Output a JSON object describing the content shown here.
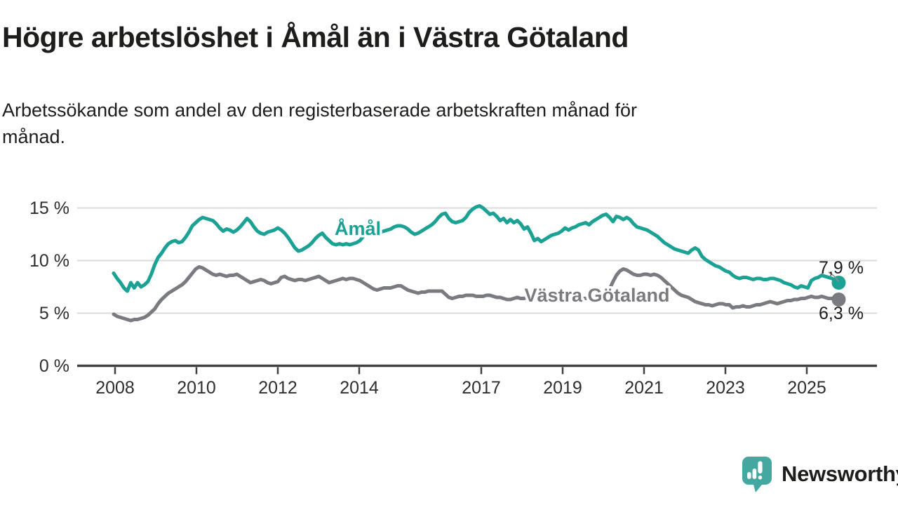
{
  "header": {
    "title": "Högre arbetslöshet i Åmål än i Västra Götaland",
    "subtitle_lines": [
      "Arbetssökande som andel av den registerbaserade arbetskraften månad för",
      "månad."
    ]
  },
  "branding": {
    "logo_text": "Newsworthy",
    "logo_icon": "newsworthy-speech-bubble-bar-chart-icon",
    "logo_color": "#3FA69E"
  },
  "colors": {
    "amal_line": "#1BA294",
    "vastra_gotaland_line": "#7A7B80",
    "gridline": "#DADADA",
    "axis": "#404040",
    "text": "#1D1D1B",
    "tick_text": "#2E2E2E"
  },
  "chart_data": {
    "type": "line",
    "title": "Högre arbetslöshet i Åmål än i Västra Götaland",
    "subtitle": "Arbetssökande som andel av den registerbaserade arbetskraften månad för månad.",
    "x_unit": "month",
    "x_start_year": 2008,
    "points_per_year": 12,
    "x_axis_ticks": [
      2008,
      2010,
      2012,
      2014,
      2017,
      2019,
      2021,
      2023,
      2025
    ],
    "y_axis_ticks": [
      {
        "value": 15,
        "label": "15 %"
      },
      {
        "value": 10,
        "label": "10 %"
      },
      {
        "value": 5,
        "label": "5 %"
      },
      {
        "value": 0,
        "label": "0 %"
      }
    ],
    "ylim": [
      0,
      16.5
    ],
    "grid": true,
    "legend": "inline-series-labels",
    "series": [
      {
        "name": "Åmål",
        "color": "#1BA294",
        "end_label": "7,9 %",
        "end_value": 7.9,
        "values": [
          8.8,
          8.3,
          7.9,
          7.4,
          7.1,
          7.9,
          7.4,
          7.9,
          7.5,
          7.7,
          8.0,
          8.7,
          9.6,
          10.3,
          10.7,
          11.2,
          11.6,
          11.8,
          11.9,
          11.7,
          11.8,
          12.2,
          12.7,
          13.3,
          13.6,
          13.9,
          14.1,
          14.0,
          13.9,
          13.8,
          13.5,
          13.1,
          12.8,
          13.0,
          12.9,
          12.7,
          12.9,
          13.2,
          13.6,
          14.0,
          13.7,
          13.2,
          12.8,
          12.6,
          12.5,
          12.7,
          12.8,
          12.9,
          13.1,
          12.9,
          12.6,
          12.2,
          11.7,
          11.2,
          10.9,
          11.0,
          11.2,
          11.4,
          11.7,
          12.1,
          12.4,
          12.6,
          12.2,
          11.9,
          11.6,
          11.5,
          11.6,
          11.5,
          11.6,
          11.5,
          11.6,
          11.7,
          11.9,
          12.3,
          12.6,
          12.7,
          12.6,
          12.6,
          12.7,
          12.8,
          12.9,
          13.0,
          13.2,
          13.3,
          13.3,
          13.2,
          13.0,
          12.7,
          12.5,
          12.6,
          12.8,
          13.0,
          13.2,
          13.4,
          13.7,
          14.1,
          14.4,
          14.5,
          14.0,
          13.7,
          13.6,
          13.7,
          13.8,
          14.1,
          14.6,
          14.9,
          15.1,
          15.2,
          15.0,
          14.7,
          14.4,
          14.5,
          14.2,
          13.8,
          14.0,
          13.6,
          13.9,
          13.6,
          13.8,
          13.5,
          13.0,
          13.2,
          12.6,
          11.9,
          12.1,
          11.8,
          12.0,
          12.2,
          12.4,
          12.5,
          12.6,
          12.8,
          13.1,
          12.9,
          13.1,
          13.2,
          13.4,
          13.5,
          13.6,
          13.4,
          13.7,
          13.9,
          14.1,
          14.3,
          14.4,
          14.1,
          13.7,
          14.2,
          14.1,
          13.9,
          14.1,
          13.9,
          13.5,
          13.2,
          13.1,
          13.0,
          12.9,
          12.7,
          12.5,
          12.3,
          12.0,
          11.7,
          11.5,
          11.3,
          11.1,
          11.0,
          10.9,
          10.8,
          10.7,
          11.0,
          11.2,
          11.0,
          10.4,
          10.1,
          9.9,
          9.7,
          9.5,
          9.4,
          9.2,
          9.0,
          8.9,
          8.6,
          8.4,
          8.3,
          8.4,
          8.4,
          8.3,
          8.2,
          8.3,
          8.3,
          8.2,
          8.2,
          8.3,
          8.3,
          8.2,
          8.1,
          7.9,
          7.8,
          7.7,
          7.5,
          7.4,
          7.6,
          7.5,
          7.4,
          8.1,
          8.3,
          8.4,
          8.6,
          8.5,
          8.4,
          8.3,
          8.1,
          7.9
        ]
      },
      {
        "name": "Västra Götaland",
        "color": "#7A7B80",
        "end_label": "6,3 %",
        "end_value": 6.3,
        "values": [
          4.9,
          4.7,
          4.6,
          4.5,
          4.4,
          4.3,
          4.4,
          4.4,
          4.5,
          4.6,
          4.8,
          5.1,
          5.4,
          5.9,
          6.3,
          6.6,
          6.9,
          7.1,
          7.3,
          7.5,
          7.7,
          8.0,
          8.4,
          8.8,
          9.2,
          9.4,
          9.3,
          9.1,
          8.9,
          8.7,
          8.6,
          8.7,
          8.6,
          8.5,
          8.6,
          8.6,
          8.7,
          8.5,
          8.3,
          8.1,
          7.9,
          8.0,
          8.1,
          8.2,
          8.1,
          7.9,
          7.8,
          7.9,
          8.0,
          8.4,
          8.5,
          8.3,
          8.2,
          8.1,
          8.2,
          8.2,
          8.1,
          8.2,
          8.3,
          8.4,
          8.5,
          8.3,
          8.1,
          7.9,
          8.0,
          8.1,
          8.2,
          8.3,
          8.2,
          8.3,
          8.3,
          8.2,
          8.1,
          7.9,
          7.7,
          7.5,
          7.3,
          7.2,
          7.3,
          7.4,
          7.4,
          7.4,
          7.5,
          7.6,
          7.6,
          7.4,
          7.2,
          7.1,
          7.0,
          6.9,
          7.0,
          7.0,
          7.1,
          7.1,
          7.1,
          7.1,
          7.1,
          6.8,
          6.5,
          6.4,
          6.5,
          6.6,
          6.6,
          6.7,
          6.7,
          6.7,
          6.6,
          6.6,
          6.6,
          6.7,
          6.7,
          6.6,
          6.5,
          6.5,
          6.4,
          6.3,
          6.3,
          6.4,
          6.5,
          6.4,
          6.4,
          6.5,
          6.5,
          6.4,
          6.4,
          6.3,
          6.3,
          6.4,
          6.4,
          6.4,
          6.5,
          6.5,
          6.5,
          6.4,
          6.4,
          6.3,
          6.3,
          6.4,
          6.4,
          6.5,
          6.5,
          6.6,
          6.6,
          6.7,
          6.9,
          7.3,
          8.0,
          8.6,
          9.0,
          9.2,
          9.1,
          8.9,
          8.7,
          8.6,
          8.6,
          8.7,
          8.7,
          8.6,
          8.7,
          8.6,
          8.4,
          8.1,
          7.8,
          7.5,
          7.2,
          6.9,
          6.7,
          6.6,
          6.5,
          6.3,
          6.1,
          6.0,
          5.9,
          5.8,
          5.8,
          5.7,
          5.8,
          5.9,
          5.9,
          5.8,
          5.8,
          5.5,
          5.6,
          5.6,
          5.7,
          5.6,
          5.6,
          5.7,
          5.8,
          5.8,
          5.9,
          6.0,
          6.1,
          6.0,
          5.9,
          6.0,
          6.1,
          6.2,
          6.2,
          6.3,
          6.3,
          6.4,
          6.4,
          6.5,
          6.6,
          6.5,
          6.5,
          6.6,
          6.5,
          6.4,
          6.4,
          6.4,
          6.3
        ]
      }
    ]
  }
}
